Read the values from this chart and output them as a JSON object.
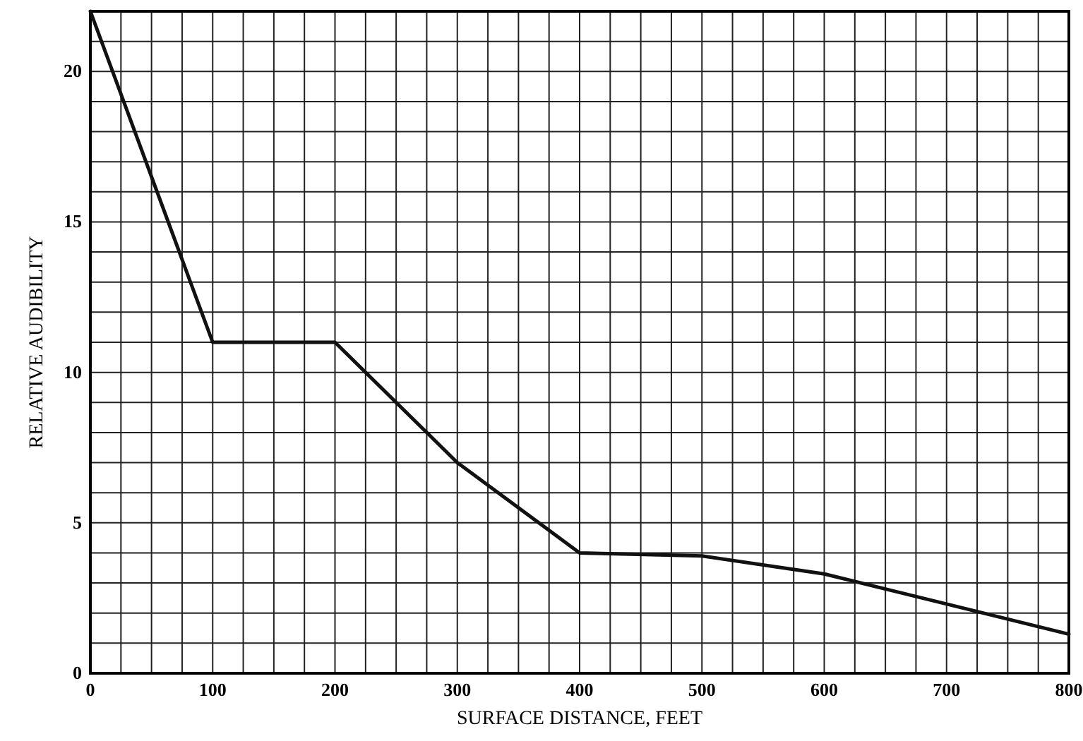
{
  "chart_data": {
    "type": "line",
    "xlabel": "SURFACE DISTANCE, FEET",
    "ylabel": "RELATIVE AUDIBILITY",
    "x": [
      0,
      100,
      200,
      300,
      400,
      500,
      600,
      700,
      800
    ],
    "series": [
      {
        "color": "#111111",
        "values": [
          22,
          11,
          11,
          7,
          4,
          3.9,
          3.3,
          2.3,
          1.3
        ]
      }
    ],
    "xlim": [
      0,
      800
    ],
    "ylim": [
      0,
      22
    ],
    "xticks": [
      0,
      {
        "value": 25,
        "label": null
      },
      {
        "value": 50,
        "label": null
      },
      {
        "value": 75,
        "label": null
      },
      100,
      {
        "value": 125,
        "label": null
      },
      {
        "value": 150,
        "label": null
      },
      {
        "value": 175,
        "label": null
      },
      200,
      {
        "value": 225,
        "label": null
      },
      {
        "value": 250,
        "label": null
      },
      {
        "value": 275,
        "label": null
      },
      300,
      {
        "value": 325,
        "label": null
      },
      {
        "value": 350,
        "label": null
      },
      {
        "value": 375,
        "label": null
      },
      400,
      {
        "value": 425,
        "label": null
      },
      {
        "value": 450,
        "label": null
      },
      {
        "value": 475,
        "label": null
      },
      500,
      {
        "value": 525,
        "label": null
      },
      {
        "value": 550,
        "label": null
      },
      {
        "value": 575,
        "label": null
      },
      600,
      {
        "value": 625,
        "label": null
      },
      {
        "value": 650,
        "label": null
      },
      {
        "value": 675,
        "label": null
      },
      700,
      {
        "value": 725,
        "label": null
      },
      {
        "value": 750,
        "label": null
      },
      {
        "value": 775,
        "label": null
      },
      800
    ],
    "yticks": [
      0,
      {
        "value": 1,
        "label": null
      },
      {
        "value": 2,
        "label": null
      },
      {
        "value": 3,
        "label": null
      },
      {
        "value": 4,
        "label": null
      },
      5,
      {
        "value": 6,
        "label": null
      },
      {
        "value": 7,
        "label": null
      },
      {
        "value": 8,
        "label": null
      },
      {
        "value": 9,
        "label": null
      },
      10,
      {
        "value": 11,
        "label": null
      },
      {
        "value": 12,
        "label": null
      },
      {
        "value": 13,
        "label": null
      },
      {
        "value": 14,
        "label": null
      },
      15,
      {
        "value": 16,
        "label": null
      },
      {
        "value": 17,
        "label": null
      },
      {
        "value": 18,
        "label": null
      },
      {
        "value": 19,
        "label": null
      },
      20,
      {
        "value": 21,
        "label": null
      },
      {
        "value": 22,
        "label": null
      }
    ],
    "grid": true,
    "marker": "none",
    "line_style": "solid"
  }
}
